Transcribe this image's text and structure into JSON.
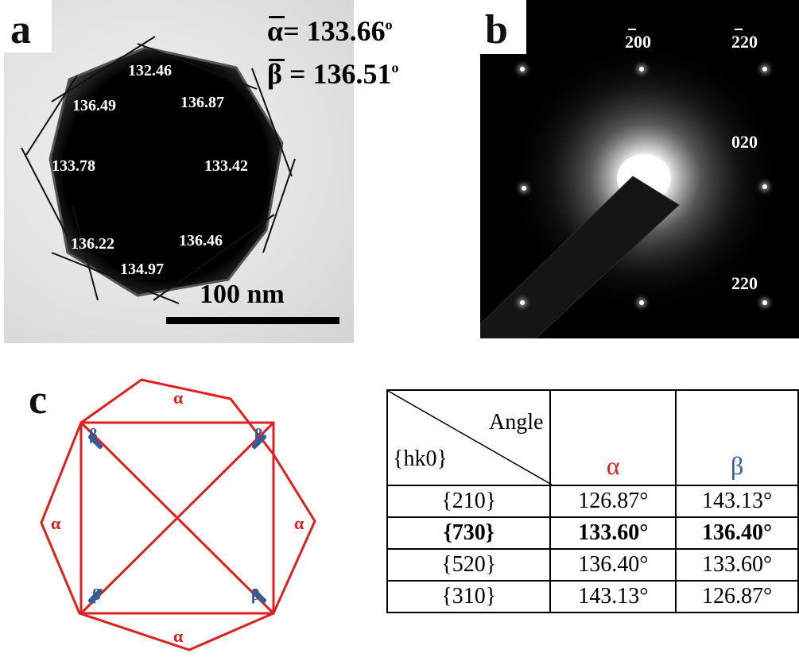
{
  "panel_a": {
    "label": "a",
    "angles": [
      "132.46",
      "136.49",
      "136.87",
      "133.78",
      "133.42",
      "136.22",
      "136.46",
      "134.97"
    ],
    "alpha_mean": "α= 133.66",
    "beta_mean": "β = 136.51",
    "degree_mark": "o",
    "scale_bar": "100 nm"
  },
  "panel_b": {
    "label": "b",
    "indices": {
      "i200": "200",
      "i220top": "220",
      "i020": "020",
      "i220": "220"
    }
  },
  "panel_c": {
    "label": "c",
    "alpha": "α",
    "beta": "β",
    "colors": {
      "octagon": "#e02020",
      "beta_mark": "#2f5c9a"
    }
  },
  "table": {
    "header_angle": "Angle",
    "header_hk": "{hk0}",
    "col_alpha": "α",
    "col_beta": "β",
    "rows": [
      {
        "hk": "{210}",
        "alpha": "126.87°",
        "beta": "143.13°"
      },
      {
        "hk": "{730}",
        "alpha": "133.60°",
        "beta": "136.40°"
      },
      {
        "hk": "{520}",
        "alpha": "136.40°",
        "beta": "133.60°"
      },
      {
        "hk": "{310}",
        "alpha": "143.13°",
        "beta": "126.87°"
      }
    ],
    "colors": {
      "alpha": "#e02020",
      "beta": "#2f5c9a"
    }
  }
}
